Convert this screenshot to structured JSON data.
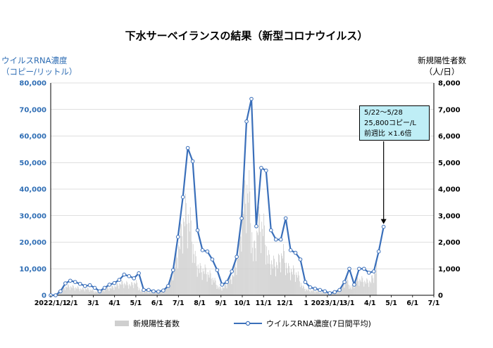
{
  "title": "下水サーベイランスの結果（新型コロナウイルス）",
  "left_axis_title": [
    "ウイルスRNA濃度",
    "（コピー/リットル）"
  ],
  "right_axis_title": [
    "新規陽性者数",
    "（人/日）"
  ],
  "callout": [
    "5/22～5/28",
    "25,800コピー/L",
    "前週比 ×1.6倍"
  ],
  "legend": {
    "bar": "新規陽性者数",
    "line": "ウイルスRNA濃度(7日間平均)"
  },
  "colors": {
    "bar": "#cfcfcf",
    "line": "#3a6fba",
    "grid": "#bfbfbf"
  },
  "chart_data": {
    "type": "bar+line",
    "x_ticks": [
      "2022/1/1",
      "2/1",
      "3/1",
      "4/1",
      "5/1",
      "6/1",
      "7/1",
      "8/1",
      "9/1",
      "10/1",
      "11/1",
      "12/1",
      "1",
      "2023/1/1",
      "3/1",
      "4/1",
      "5/1",
      "6/1",
      "7/1"
    ],
    "y_left": {
      "ticks": [
        "0",
        "10,000",
        "20,000",
        "30,000",
        "40,000",
        "50,000",
        "60,000",
        "70,000",
        "80,000"
      ],
      "range": [
        0,
        80000
      ]
    },
    "y_right": {
      "ticks": [
        "0",
        "1,000",
        "2,000",
        "3,000",
        "4,000",
        "5,000",
        "6,000",
        "7,000",
        "8,000"
      ],
      "range": [
        0,
        8000
      ]
    },
    "x_range_months": [
      0,
      18
    ],
    "line_series": {
      "name": "ウイルスRNA濃度(7日間平均)",
      "points": [
        [
          0.0,
          0
        ],
        [
          0.23,
          0
        ],
        [
          0.46,
          1500
        ],
        [
          0.69,
          4500
        ],
        [
          0.92,
          5500
        ],
        [
          1.15,
          5000
        ],
        [
          1.38,
          4300
        ],
        [
          1.61,
          3500
        ],
        [
          1.84,
          3800
        ],
        [
          2.07,
          2800
        ],
        [
          2.3,
          1500
        ],
        [
          2.53,
          2800
        ],
        [
          2.76,
          4000
        ],
        [
          2.99,
          4600
        ],
        [
          3.22,
          5800
        ],
        [
          3.45,
          7800
        ],
        [
          3.68,
          7200
        ],
        [
          3.91,
          6400
        ],
        [
          4.14,
          8300
        ],
        [
          4.37,
          2000
        ],
        [
          4.6,
          2000
        ],
        [
          4.83,
          1500
        ],
        [
          5.06,
          1400
        ],
        [
          5.29,
          1800
        ],
        [
          5.52,
          3500
        ],
        [
          5.75,
          9500
        ],
        [
          5.98,
          22000
        ],
        [
          6.21,
          37000
        ],
        [
          6.44,
          55500
        ],
        [
          6.67,
          50500
        ],
        [
          6.9,
          24500
        ],
        [
          7.13,
          17000
        ],
        [
          7.36,
          16500
        ],
        [
          7.59,
          13500
        ],
        [
          7.82,
          9500
        ],
        [
          8.05,
          4000
        ],
        [
          8.28,
          5000
        ],
        [
          8.51,
          9000
        ],
        [
          8.74,
          14500
        ],
        [
          8.97,
          29000
        ],
        [
          9.2,
          65500
        ],
        [
          9.43,
          74000
        ],
        [
          9.66,
          26000
        ],
        [
          9.89,
          48000
        ],
        [
          10.12,
          47000
        ],
        [
          10.35,
          24500
        ],
        [
          10.58,
          21000
        ],
        [
          10.81,
          21000
        ],
        [
          11.04,
          29000
        ],
        [
          11.27,
          17000
        ],
        [
          11.5,
          16000
        ],
        [
          11.73,
          13500
        ],
        [
          11.96,
          5000
        ],
        [
          12.19,
          3000
        ],
        [
          12.42,
          2500
        ],
        [
          12.65,
          2000
        ],
        [
          12.88,
          1500
        ],
        [
          13.11,
          800
        ],
        [
          13.34,
          1200
        ],
        [
          13.57,
          2000
        ],
        [
          13.8,
          5000
        ],
        [
          14.03,
          10000
        ],
        [
          14.26,
          4000
        ],
        [
          14.49,
          10000
        ],
        [
          14.72,
          10000
        ],
        [
          14.95,
          8500
        ],
        [
          15.18,
          9000
        ],
        [
          15.41,
          16500
        ],
        [
          15.64,
          25800
        ]
      ]
    },
    "bar_series": {
      "name": "新規陽性者数"
    }
  }
}
